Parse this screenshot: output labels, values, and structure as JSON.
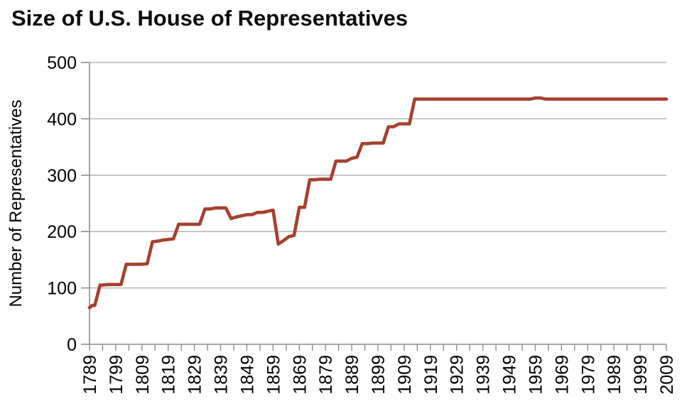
{
  "page": {
    "title": "Size of U.S. House of Representatives"
  },
  "chart_data": {
    "type": "line",
    "subtype": "step",
    "title": "Size of U.S. House of Representatives",
    "xlabel": "",
    "ylabel": "Number of Representatives",
    "xlim": [
      1789,
      2009
    ],
    "ylim": [
      0,
      500
    ],
    "y_ticks": [
      0,
      100,
      200,
      300,
      400,
      500
    ],
    "x_tick_labels": [
      "1789",
      "1799",
      "1809",
      "1819",
      "1829",
      "1839",
      "1849",
      "1859",
      "1869",
      "1879",
      "1889",
      "1899",
      "1909",
      "1919",
      "1929",
      "1939",
      "1949",
      "1959",
      "1969",
      "1979",
      "1989",
      "1999",
      "2009"
    ],
    "x_minor_tick_interval_years": 5,
    "grid": "horizontal",
    "legend": "none",
    "colors": {
      "line": "#A5402D",
      "gridline": "#ABABAB",
      "axis": "#8C8C8C",
      "text": "#000000"
    },
    "series": [
      {
        "name": "Number of Representatives",
        "step_points": [
          [
            1789,
            65
          ],
          [
            1790,
            69
          ],
          [
            1793,
            105
          ],
          [
            1796,
            106
          ],
          [
            1803,
            142
          ],
          [
            1811,
            143
          ],
          [
            1813,
            182
          ],
          [
            1815,
            183
          ],
          [
            1817,
            185
          ],
          [
            1819,
            186
          ],
          [
            1821,
            187
          ],
          [
            1823,
            213
          ],
          [
            1833,
            240
          ],
          [
            1837,
            242
          ],
          [
            1843,
            223
          ],
          [
            1845,
            226
          ],
          [
            1847,
            228
          ],
          [
            1849,
            230
          ],
          [
            1853,
            234
          ],
          [
            1857,
            236
          ],
          [
            1859,
            238
          ],
          [
            1861,
            178
          ],
          [
            1863,
            184
          ],
          [
            1865,
            191
          ],
          [
            1867,
            193
          ],
          [
            1869,
            243
          ],
          [
            1873,
            292
          ],
          [
            1877,
            293
          ],
          [
            1883,
            325
          ],
          [
            1889,
            330
          ],
          [
            1891,
            332
          ],
          [
            1893,
            356
          ],
          [
            1897,
            357
          ],
          [
            1903,
            386
          ],
          [
            1907,
            391
          ],
          [
            1913,
            435
          ],
          [
            1959,
            437
          ],
          [
            1963,
            435
          ],
          [
            2009,
            435
          ]
        ]
      }
    ]
  }
}
